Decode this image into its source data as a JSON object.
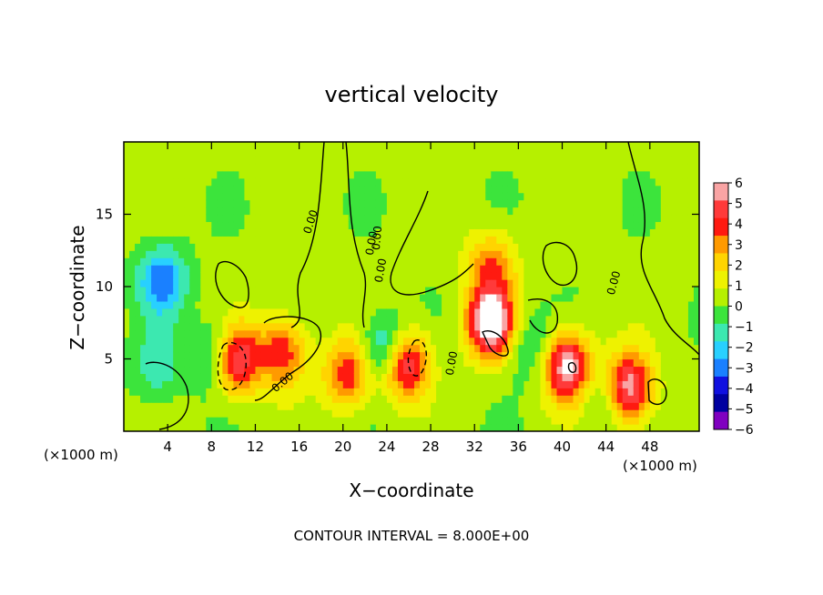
{
  "chart_data": {
    "type": "heatmap",
    "title": "vertical velocity",
    "xlabel": "X−coordinate",
    "ylabel": "Z−coordinate",
    "x_unit_left": "(×1000 m)",
    "x_unit_right": "(×1000 m)",
    "footer": "CONTOUR INTERVAL = 8.000E+00",
    "xlim": [
      0,
      52.5
    ],
    "ylim": [
      0,
      20
    ],
    "x_ticks": [
      4,
      8,
      12,
      16,
      20,
      24,
      28,
      32,
      36,
      40,
      44,
      48
    ],
    "x_tick_labels": [
      "4",
      "8",
      "12",
      "16",
      "20",
      "24",
      "28",
      "32",
      "36",
      "40",
      "44",
      "48"
    ],
    "y_ticks": [
      5,
      10,
      15
    ],
    "y_tick_labels": [
      "5",
      "10",
      "15"
    ],
    "contour_labels": [
      "0.00",
      "0.00",
      "0.00",
      "0.00",
      "0.00",
      "0.00",
      "0.00"
    ],
    "colorbar": {
      "levels": [
        6,
        5,
        4,
        3,
        2,
        1,
        0,
        -1,
        -2,
        -3,
        -4,
        -5,
        -6
      ],
      "labels": [
        "6",
        "5",
        "4",
        "3",
        "2",
        "1",
        "0",
        "−1",
        "−2",
        "−3",
        "−4",
        "−5",
        "−6"
      ],
      "colors": [
        "#f9a4a4",
        "#ff3a3a",
        "#ff1a10",
        "#ff9a00",
        "#ffd400",
        "#eef200",
        "#b6f000",
        "#3ce43c",
        "#3ce8b0",
        "#28d0ff",
        "#1a80ff",
        "#1010e0",
        "#0000a0",
        "#8000c0"
      ]
    },
    "background_level": 0.3,
    "features": [
      {
        "kind": "updraft",
        "x": 10.0,
        "z": 5.0,
        "peak": 9
      },
      {
        "kind": "downdraft",
        "x": 9.0,
        "z": 5.2,
        "peak": -5.5
      },
      {
        "kind": "updraft",
        "x": 25.5,
        "z": 4.8,
        "peak": 8
      },
      {
        "kind": "downdraft",
        "x": 24.2,
        "z": 5.5,
        "peak": -5.5
      },
      {
        "kind": "downdraft",
        "x": 3.5,
        "z": 10.5,
        "peak": -4
      },
      {
        "kind": "updraft",
        "x": 14.5,
        "z": 5.5,
        "peak": 4.5
      },
      {
        "kind": "updraft",
        "x": 20.5,
        "z": 4.0,
        "peak": 4.5
      },
      {
        "kind": "updraft",
        "x": 33.5,
        "z": 7.5,
        "peak": 8
      },
      {
        "kind": "updraft",
        "x": 33.5,
        "z": 11.5,
        "peak": 3.5
      },
      {
        "kind": "updraft",
        "x": 40.5,
        "z": 4.5,
        "peak": 7
      },
      {
        "kind": "updraft",
        "x": 46.0,
        "z": 3.0,
        "peak": 7
      },
      {
        "kind": "downdraft",
        "x": 3.0,
        "z": 4.5,
        "peak": -2
      },
      {
        "kind": "downdraft",
        "x": 37.0,
        "z": 6.0,
        "peak": -2
      },
      {
        "kind": "downdraft",
        "x": 44.0,
        "z": 2.5,
        "peak": -2
      }
    ]
  }
}
